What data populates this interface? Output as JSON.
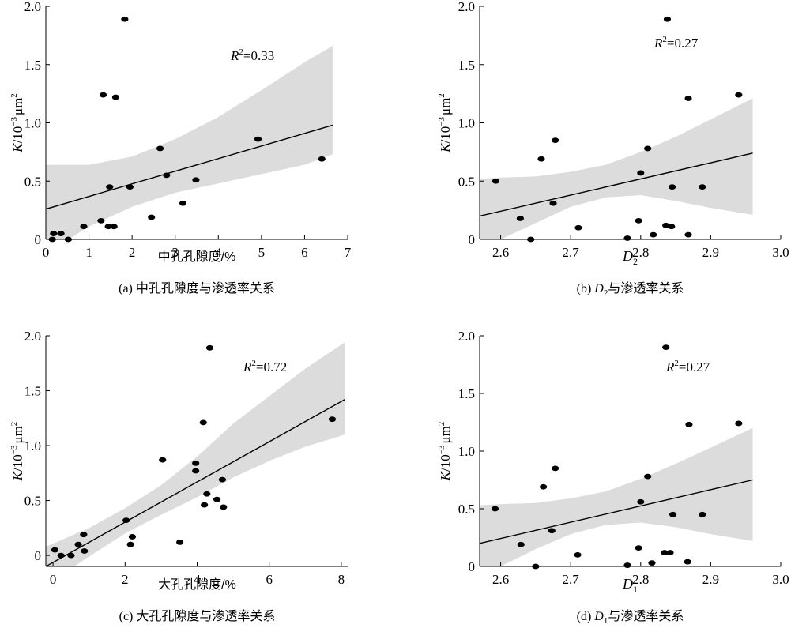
{
  "chart_data": [
    {
      "type": "scatter",
      "xlabel": "中孔孔隙度/%",
      "ylabel_k": "K",
      "ylabel_unit": "/10",
      "ylabel_exp": "−3",
      "ylabel_um": "μm",
      "ylabel_um_exp": "2",
      "r2_symbol": "R",
      "r2_exp": "2",
      "r2_value": "=0.33",
      "caption": "(a) 中孔孔隙度与渗透率关系",
      "xlim": [
        0,
        7
      ],
      "ylim": [
        0,
        2.0
      ],
      "xticks": [
        0,
        1,
        2,
        3,
        4,
        5,
        6,
        7
      ],
      "xtick_labels": [
        "0",
        "1",
        "2",
        "3",
        "4",
        "5",
        "6",
        "7"
      ],
      "yticks": [
        0,
        0.5,
        1.0,
        1.5,
        2.0
      ],
      "ytick_labels": [
        "0",
        "0.5",
        "1.0",
        "1.5",
        "2.0"
      ],
      "points": [
        {
          "x": 0.15,
          "y": 0.0
        },
        {
          "x": 0.18,
          "y": 0.05
        },
        {
          "x": 0.35,
          "y": 0.05
        },
        {
          "x": 0.52,
          "y": 0.0
        },
        {
          "x": 0.88,
          "y": 0.11
        },
        {
          "x": 1.28,
          "y": 0.16
        },
        {
          "x": 1.45,
          "y": 0.11
        },
        {
          "x": 1.58,
          "y": 0.11
        },
        {
          "x": 1.48,
          "y": 0.45
        },
        {
          "x": 1.95,
          "y": 0.45
        },
        {
          "x": 2.45,
          "y": 0.19
        },
        {
          "x": 2.8,
          "y": 0.55
        },
        {
          "x": 3.18,
          "y": 0.31
        },
        {
          "x": 3.48,
          "y": 0.51
        },
        {
          "x": 2.65,
          "y": 0.78
        },
        {
          "x": 4.92,
          "y": 0.86
        },
        {
          "x": 6.4,
          "y": 0.69
        },
        {
          "x": 1.33,
          "y": 1.24
        },
        {
          "x": 1.62,
          "y": 1.22
        },
        {
          "x": 1.83,
          "y": 1.89
        }
      ],
      "fit": {
        "x0": 0,
        "y0": 0.26,
        "x1": 6.65,
        "y1": 0.98
      },
      "band": {
        "upper": [
          [
            0,
            0.64
          ],
          [
            1,
            0.64
          ],
          [
            2,
            0.71
          ],
          [
            3,
            0.86
          ],
          [
            4,
            1.05
          ],
          [
            5,
            1.28
          ],
          [
            6,
            1.52
          ],
          [
            6.65,
            1.66
          ]
        ],
        "lower": [
          [
            0,
            -0.12
          ],
          [
            1,
            0.11
          ],
          [
            2,
            0.28
          ],
          [
            3,
            0.4
          ],
          [
            4,
            0.48
          ],
          [
            5,
            0.56
          ],
          [
            6,
            0.64
          ],
          [
            6.65,
            0.73
          ]
        ]
      }
    },
    {
      "type": "scatter",
      "xlabel_sym": "D",
      "xlabel_sub": "2",
      "ylabel_k": "K",
      "ylabel_unit": "/10",
      "ylabel_exp": "−3",
      "ylabel_um": "μm",
      "ylabel_um_exp": "2",
      "r2_symbol": "R",
      "r2_exp": "2",
      "r2_value": "=0.27",
      "caption_prefix": "(b) ",
      "caption_sym": "D",
      "caption_sub": "2",
      "caption_suffix": "与渗透率关系",
      "xlim": [
        2.57,
        3.0
      ],
      "ylim": [
        0,
        2.0
      ],
      "xticks": [
        2.6,
        2.7,
        2.8,
        2.9,
        3.0
      ],
      "xtick_labels": [
        "2.6",
        "2.7",
        "2.8",
        "2.9",
        "3.0"
      ],
      "yticks": [
        0,
        0.5,
        1.0,
        1.5,
        2.0
      ],
      "ytick_labels": [
        "0",
        "0.5",
        "1.0",
        "1.5",
        "2.0"
      ],
      "points": [
        {
          "x": 2.593,
          "y": 0.5
        },
        {
          "x": 2.628,
          "y": 0.18
        },
        {
          "x": 2.643,
          "y": 0.0
        },
        {
          "x": 2.658,
          "y": 0.69
        },
        {
          "x": 2.675,
          "y": 0.31
        },
        {
          "x": 2.678,
          "y": 0.85
        },
        {
          "x": 2.711,
          "y": 0.1
        },
        {
          "x": 2.781,
          "y": 0.01
        },
        {
          "x": 2.797,
          "y": 0.16
        },
        {
          "x": 2.8,
          "y": 0.57
        },
        {
          "x": 2.81,
          "y": 0.78
        },
        {
          "x": 2.818,
          "y": 0.04
        },
        {
          "x": 2.836,
          "y": 0.12
        },
        {
          "x": 2.844,
          "y": 0.11
        },
        {
          "x": 2.845,
          "y": 0.45
        },
        {
          "x": 2.868,
          "y": 0.04
        },
        {
          "x": 2.868,
          "y": 1.21
        },
        {
          "x": 2.888,
          "y": 0.45
        },
        {
          "x": 2.94,
          "y": 1.24
        },
        {
          "x": 2.838,
          "y": 1.89
        }
      ],
      "fit": {
        "x0": 2.57,
        "y0": 0.2,
        "x1": 2.96,
        "y1": 0.74
      },
      "band": {
        "upper": [
          [
            2.57,
            0.52
          ],
          [
            2.6,
            0.53
          ],
          [
            2.65,
            0.54
          ],
          [
            2.7,
            0.58
          ],
          [
            2.75,
            0.64
          ],
          [
            2.8,
            0.75
          ],
          [
            2.85,
            0.88
          ],
          [
            2.9,
            1.03
          ],
          [
            2.96,
            1.21
          ]
        ],
        "lower": [
          [
            2.57,
            -0.12
          ],
          [
            2.6,
            0.0
          ],
          [
            2.65,
            0.14
          ],
          [
            2.7,
            0.28
          ],
          [
            2.75,
            0.36
          ],
          [
            2.8,
            0.38
          ],
          [
            2.85,
            0.33
          ],
          [
            2.9,
            0.27
          ],
          [
            2.96,
            0.21
          ]
        ]
      }
    },
    {
      "type": "scatter",
      "xlabel": "大孔孔隙度/%",
      "ylabel_k": "K",
      "ylabel_unit": "/10",
      "ylabel_exp": "−3",
      "ylabel_um": "μm",
      "ylabel_um_exp": "2",
      "r2_symbol": "R",
      "r2_exp": "2",
      "r2_value": "=0.72",
      "caption": "(c) 大孔孔隙度与渗透率关系",
      "xlim": [
        -0.2,
        8.2
      ],
      "ylim": [
        -0.1,
        2.0
      ],
      "xticks": [
        0,
        2,
        4,
        6,
        8
      ],
      "xtick_labels": [
        "0",
        "2",
        "4",
        "6",
        "8"
      ],
      "yticks": [
        0,
        0.5,
        1.0,
        1.5,
        2.0
      ],
      "ytick_labels": [
        "0",
        "0.5",
        "1.0",
        "1.5",
        "2.0"
      ],
      "points": [
        {
          "x": 0.05,
          "y": 0.05
        },
        {
          "x": 0.22,
          "y": 0.0
        },
        {
          "x": 0.5,
          "y": 0.0
        },
        {
          "x": 0.7,
          "y": 0.1
        },
        {
          "x": 0.85,
          "y": 0.19
        },
        {
          "x": 0.87,
          "y": 0.04
        },
        {
          "x": 2.03,
          "y": 0.32
        },
        {
          "x": 2.15,
          "y": 0.1
        },
        {
          "x": 2.2,
          "y": 0.17
        },
        {
          "x": 3.04,
          "y": 0.87
        },
        {
          "x": 3.52,
          "y": 0.12
        },
        {
          "x": 3.96,
          "y": 0.84
        },
        {
          "x": 3.96,
          "y": 0.77
        },
        {
          "x": 4.17,
          "y": 1.21
        },
        {
          "x": 4.2,
          "y": 0.46
        },
        {
          "x": 4.27,
          "y": 0.56
        },
        {
          "x": 4.55,
          "y": 0.51
        },
        {
          "x": 4.7,
          "y": 0.69
        },
        {
          "x": 4.73,
          "y": 0.44
        },
        {
          "x": 4.35,
          "y": 1.89
        },
        {
          "x": 7.75,
          "y": 1.24
        }
      ],
      "fit": {
        "x0": -0.2,
        "y0": -0.1,
        "x1": 8.1,
        "y1": 1.42
      },
      "band": {
        "upper": [
          [
            -0.2,
            0.08
          ],
          [
            1,
            0.25
          ],
          [
            2,
            0.43
          ],
          [
            3,
            0.64
          ],
          [
            4,
            0.9
          ],
          [
            5,
            1.2
          ],
          [
            6,
            1.45
          ],
          [
            7,
            1.7
          ],
          [
            8.1,
            1.94
          ]
        ],
        "lower": [
          [
            -0.2,
            -0.27
          ],
          [
            1,
            -0.01
          ],
          [
            2,
            0.2
          ],
          [
            3,
            0.37
          ],
          [
            4,
            0.53
          ],
          [
            5,
            0.71
          ],
          [
            6,
            0.86
          ],
          [
            7,
            0.99
          ],
          [
            8.1,
            1.1
          ]
        ]
      }
    },
    {
      "type": "scatter",
      "xlabel_sym": "D",
      "xlabel_sub": "1",
      "ylabel_k": "K",
      "ylabel_unit": "/10",
      "ylabel_exp": "−3",
      "ylabel_um": "μm",
      "ylabel_um_exp": "2",
      "r2_symbol": "R",
      "r2_exp": "2",
      "r2_value": "=0.27",
      "caption_prefix": "(d) ",
      "caption_sym": "D",
      "caption_sub": "1",
      "caption_suffix": "与渗透率关系",
      "xlim": [
        2.57,
        3.0
      ],
      "ylim": [
        0,
        2.0
      ],
      "xticks": [
        2.6,
        2.7,
        2.8,
        2.9,
        3.0
      ],
      "xtick_labels": [
        "2.6",
        "2.7",
        "2.8",
        "2.9",
        "3.0"
      ],
      "yticks": [
        0,
        0.5,
        1.0,
        1.5,
        2.0
      ],
      "ytick_labels": [
        "0",
        "0.5",
        "1.0",
        "1.5",
        "2.0"
      ],
      "points": [
        {
          "x": 2.592,
          "y": 0.5
        },
        {
          "x": 2.629,
          "y": 0.19
        },
        {
          "x": 2.65,
          "y": 0.0
        },
        {
          "x": 2.661,
          "y": 0.69
        },
        {
          "x": 2.673,
          "y": 0.31
        },
        {
          "x": 2.678,
          "y": 0.85
        },
        {
          "x": 2.71,
          "y": 0.1
        },
        {
          "x": 2.781,
          "y": 0.01
        },
        {
          "x": 2.797,
          "y": 0.16
        },
        {
          "x": 2.8,
          "y": 0.56
        },
        {
          "x": 2.81,
          "y": 0.78
        },
        {
          "x": 2.816,
          "y": 0.03
        },
        {
          "x": 2.834,
          "y": 0.12
        },
        {
          "x": 2.842,
          "y": 0.12
        },
        {
          "x": 2.846,
          "y": 0.45
        },
        {
          "x": 2.867,
          "y": 0.04
        },
        {
          "x": 2.869,
          "y": 1.23
        },
        {
          "x": 2.888,
          "y": 0.45
        },
        {
          "x": 2.94,
          "y": 1.24
        },
        {
          "x": 2.836,
          "y": 1.9
        }
      ],
      "fit": {
        "x0": 2.57,
        "y0": 0.2,
        "x1": 2.96,
        "y1": 0.75
      },
      "band": {
        "upper": [
          [
            2.57,
            0.53
          ],
          [
            2.6,
            0.54
          ],
          [
            2.65,
            0.55
          ],
          [
            2.7,
            0.59
          ],
          [
            2.75,
            0.65
          ],
          [
            2.8,
            0.76
          ],
          [
            2.85,
            0.89
          ],
          [
            2.9,
            1.03
          ],
          [
            2.96,
            1.2
          ]
        ],
        "lower": [
          [
            2.57,
            -0.12
          ],
          [
            2.6,
            0.0
          ],
          [
            2.65,
            0.15
          ],
          [
            2.7,
            0.28
          ],
          [
            2.75,
            0.36
          ],
          [
            2.8,
            0.38
          ],
          [
            2.85,
            0.34
          ],
          [
            2.9,
            0.28
          ],
          [
            2.96,
            0.22
          ]
        ]
      }
    }
  ]
}
